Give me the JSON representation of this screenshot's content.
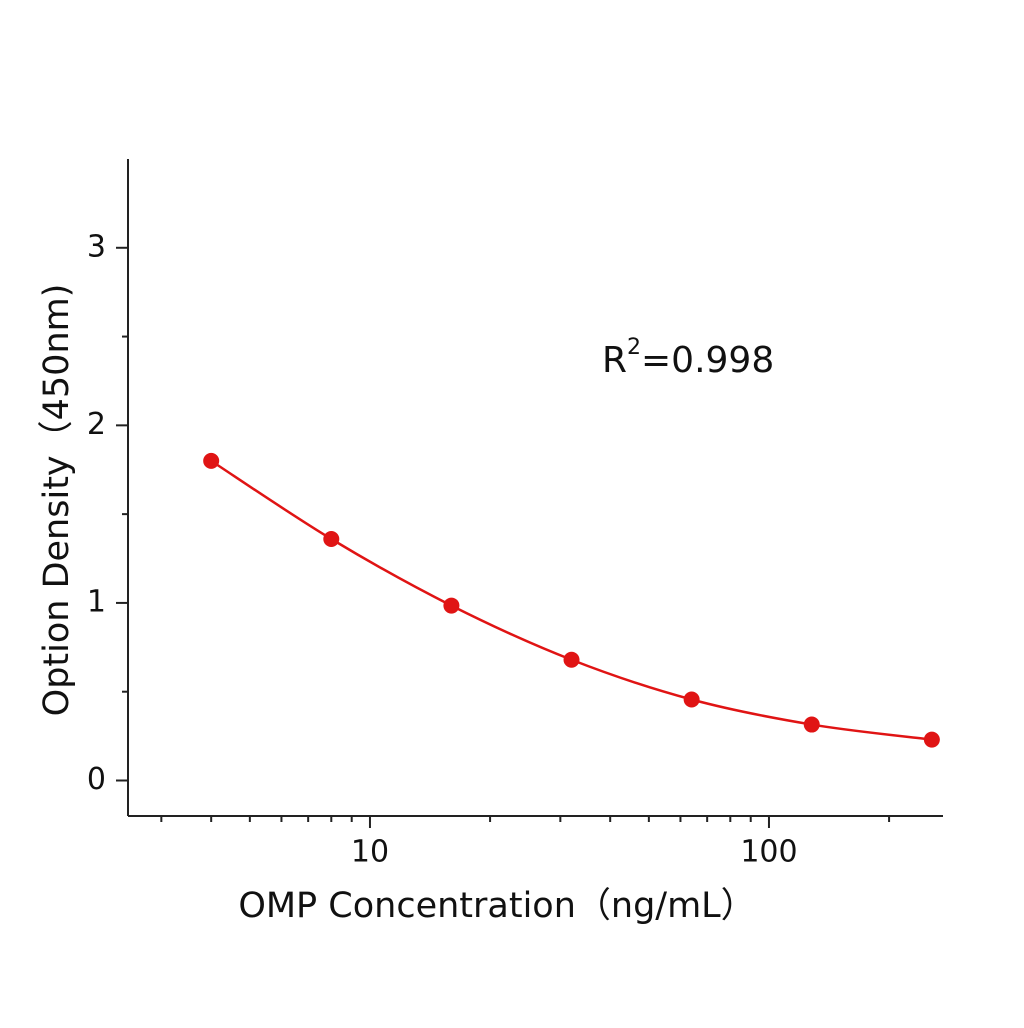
{
  "chart_data": {
    "type": "line",
    "x_label": "OMP Concentration（ng/mL）",
    "y_label": "Option Density（450nm)",
    "annotation": [
      "R",
      "2",
      "=0.998"
    ],
    "x_scale": "log",
    "x": [
      4,
      8,
      16,
      32,
      64,
      128,
      256
    ],
    "series": [
      {
        "color": "#e01414",
        "values": [
          1.8,
          1.36,
          0.985,
          0.68,
          0.456,
          0.315,
          0.23
        ]
      }
    ],
    "xlim": [
      2.475,
      273
    ],
    "xticks": [
      10,
      100
    ],
    "x_minor_ticks": [
      3,
      4,
      5,
      6,
      7,
      8,
      9,
      20,
      30,
      40,
      50,
      60,
      70,
      80,
      90,
      200
    ],
    "ylim": [
      -0.2,
      3.5
    ],
    "yticks": [
      0,
      1,
      2,
      3
    ],
    "y_minor_ticks": [
      0.5,
      1.5,
      2.5
    ]
  }
}
